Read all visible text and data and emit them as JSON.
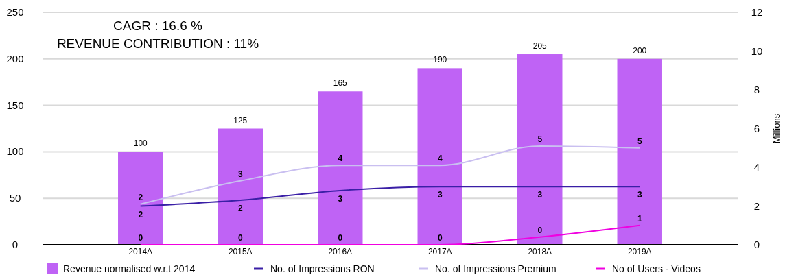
{
  "chart_data": {
    "type": "bar",
    "categories": [
      "2014A",
      "2015A",
      "2016A",
      "2017A",
      "2018A",
      "2019A"
    ],
    "ylim": [
      0,
      250
    ],
    "yticks": [
      0,
      50,
      100,
      150,
      200,
      250
    ],
    "y2lim": [
      0,
      12
    ],
    "y2ticks": [
      0,
      2,
      4,
      6,
      8,
      10,
      12
    ],
    "y2label": "Millions",
    "grid": "y",
    "legend": "bottom",
    "data_labels": true,
    "annotations": [
      "CAGR : 16.6 %",
      "REVENUE CONTRIBUTION : 11%"
    ],
    "series": [
      {
        "name": "Revenue normalised w.r.t 2014",
        "color": "#bf63f5",
        "values": [
          100,
          125,
          165,
          190,
          205,
          200
        ]
      },
      {
        "name": "No. of Impressions RON",
        "type": "line",
        "axis": "y2",
        "color": "#3a1fa6",
        "values": [
          2.0,
          2.3,
          2.8,
          3.0,
          3.0,
          3.0
        ],
        "value_labels": [
          "2",
          "2",
          "3",
          "3",
          "3",
          "3"
        ]
      },
      {
        "name": "No. of Impressions Premium",
        "type": "line",
        "axis": "y2",
        "color": "#c9bff0",
        "values": [
          2.1,
          3.3,
          4.1,
          4.1,
          5.1,
          5.0
        ],
        "value_labels": [
          "2",
          "3",
          "4",
          "4",
          "5",
          "5"
        ]
      },
      {
        "name": "No of Users - Videos",
        "type": "line",
        "axis": "y2",
        "color": "#f000e0",
        "values": [
          0.0,
          0.0,
          0.0,
          0.0,
          0.4,
          1.0
        ],
        "value_labels": [
          "0",
          "0",
          "0",
          "0",
          "0",
          "1"
        ]
      }
    ]
  }
}
